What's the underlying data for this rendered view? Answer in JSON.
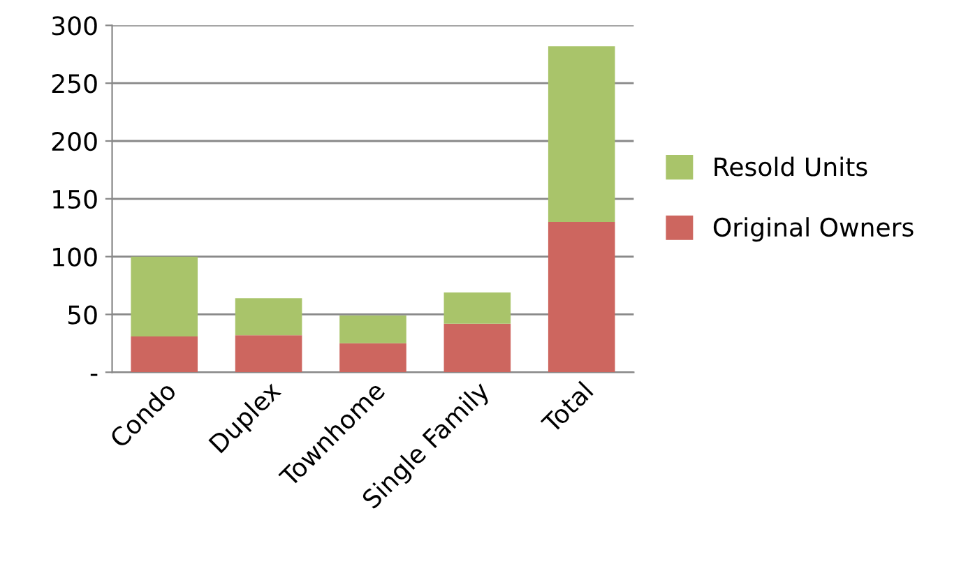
{
  "chart_data": {
    "type": "bar",
    "stacked": true,
    "categories": [
      "Condo",
      "Duplex",
      "Townhome",
      "Single Family",
      "Total"
    ],
    "series": [
      {
        "name": "Original Owners",
        "color": "#cd665f",
        "values": [
          31,
          32,
          25,
          42,
          130
        ]
      },
      {
        "name": "Resold Units",
        "color": "#a9c46a",
        "values": [
          69,
          32,
          24,
          27,
          152
        ]
      }
    ],
    "ylim": [
      0,
      300
    ],
    "yticks": [
      {
        "value": 0,
        "label": "-"
      },
      50,
      100,
      150,
      200,
      250,
      300
    ],
    "grid": "y",
    "legend": "right"
  }
}
